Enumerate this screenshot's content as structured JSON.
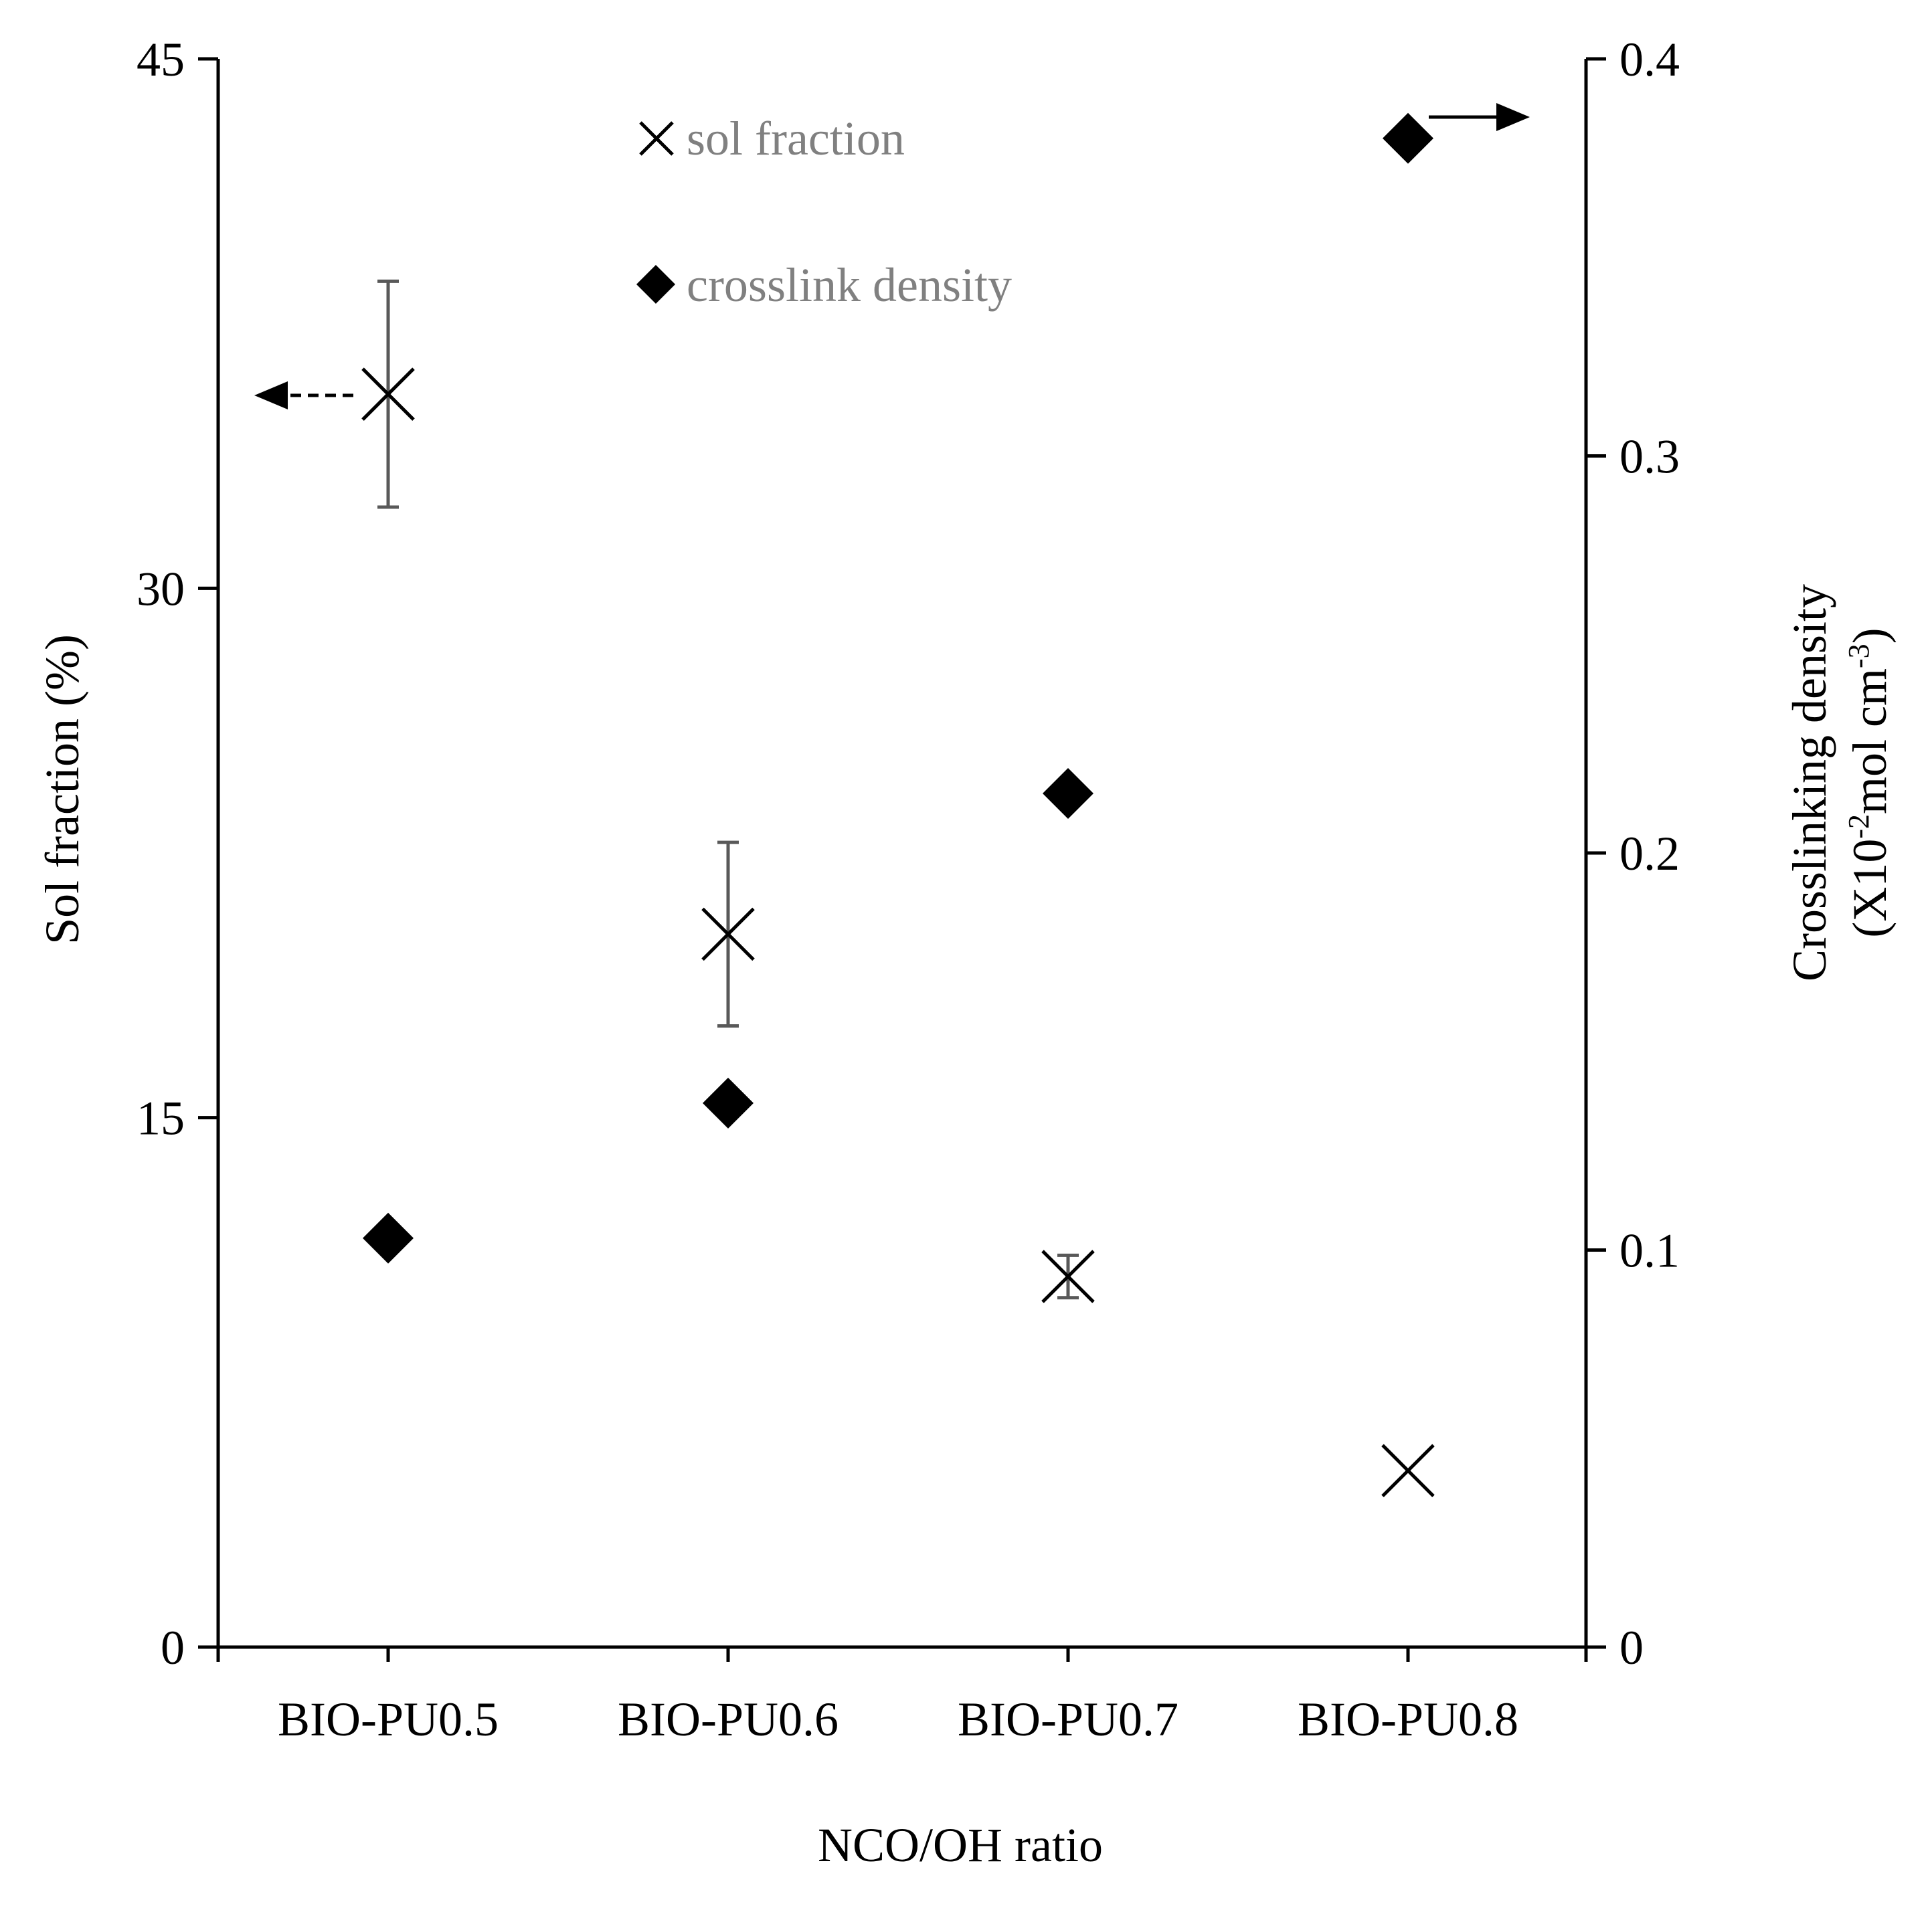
{
  "chart_data": {
    "type": "scatter",
    "title": "",
    "xlabel": "NCO/OH ratio",
    "ylabel_left": "Sol fraction (%)",
    "ylabel_right_line1": "Crosslinking density",
    "ylabel_right_line2": {
      "prefix": "(X10",
      "exp1": "-2",
      "middle": "mol cm",
      "exp2": "-3",
      "suffix": ")"
    },
    "categories": [
      "BIO-PU0.5",
      "BIO-PU0.6",
      "BIO-PU0.7",
      "BIO-PU0.8"
    ],
    "y_left": {
      "min": 0,
      "max": 45,
      "ticks": [
        0,
        15,
        30,
        45
      ],
      "tick_labels": [
        "0",
        "15",
        "30",
        "45"
      ]
    },
    "y_right": {
      "min": 0,
      "max": 0.4,
      "ticks": [
        0,
        0.1,
        0.2,
        0.3,
        0.4
      ],
      "tick_labels": [
        "0",
        "0.1",
        "0.2",
        "0.3",
        "0.4"
      ]
    },
    "grid": false,
    "legend_position": "top-center",
    "series": [
      {
        "name": "sol fraction",
        "axis": "left",
        "marker": "x",
        "values": [
          35.5,
          20.2,
          10.5,
          5.0
        ],
        "error": [
          3.2,
          2.6,
          0.6,
          0.0
        ]
      },
      {
        "name": "crosslink density",
        "axis": "right",
        "marker": "diamond",
        "values": [
          0.103,
          0.137,
          0.215,
          0.38
        ]
      }
    ],
    "colors": {
      "markers": "#000000",
      "error_bars": "#595959",
      "legend_text": "#808080",
      "axes": "#000000"
    }
  }
}
